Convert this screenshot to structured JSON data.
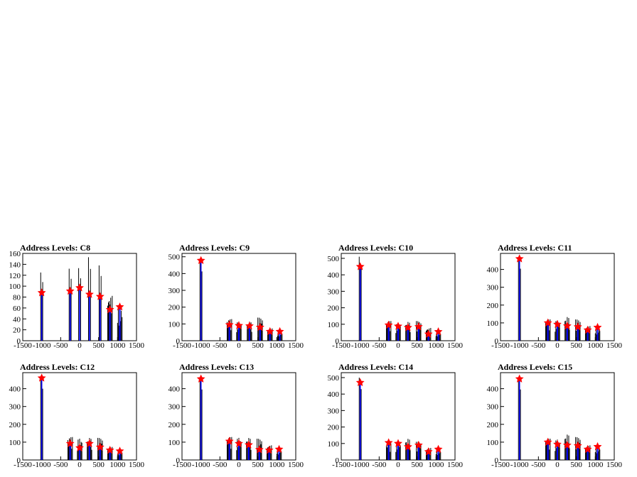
{
  "chart_data": [
    {
      "type": "histogram",
      "title": "Address Levels: C8",
      "xlim": [
        -1500,
        1500
      ],
      "ylim": [
        0,
        160
      ],
      "xticks": [
        -1500,
        -1000,
        -500,
        0,
        500,
        1000,
        1500
      ],
      "xtick_labels": [
        "-1500",
        "-1000",
        "-500",
        "0",
        "500",
        "1000",
        "1500"
      ],
      "yticks": [
        0,
        20,
        40,
        60,
        80,
        100,
        120,
        140,
        160
      ],
      "peaks": [
        {
          "x": -1000,
          "max": 125,
          "mean": 88
        },
        {
          "x": -250,
          "max": 132,
          "mean": 91
        },
        {
          "x": 0,
          "max": 133,
          "mean": 97
        },
        {
          "x": 260,
          "max": 153,
          "mean": 85
        },
        {
          "x": 540,
          "max": 138,
          "mean": 81
        },
        {
          "x": 800,
          "max": 90,
          "mean": 57
        },
        {
          "x": 1060,
          "max": 63,
          "mean": 62
        }
      ]
    },
    {
      "type": "histogram",
      "title": "Address Levels: C9",
      "xlim": [
        -1500,
        1500
      ],
      "ylim": [
        0,
        520
      ],
      "xticks": [
        -1500,
        -1000,
        -500,
        0,
        500,
        1000,
        1500
      ],
      "xtick_labels": [
        "-1500",
        "-1000",
        "-500",
        "0",
        "500",
        "1000",
        "1500"
      ],
      "yticks": [
        0,
        100,
        200,
        300,
        400,
        500
      ],
      "peaks": [
        {
          "x": -1000,
          "max": 480,
          "mean": 478
        },
        {
          "x": -250,
          "max": 140,
          "mean": 95
        },
        {
          "x": 0,
          "max": 120,
          "mean": 90
        },
        {
          "x": 280,
          "max": 120,
          "mean": 88
        },
        {
          "x": 560,
          "max": 150,
          "mean": 80
        },
        {
          "x": 820,
          "max": 80,
          "mean": 55
        },
        {
          "x": 1080,
          "max": 60,
          "mean": 55
        }
      ]
    },
    {
      "type": "histogram",
      "title": "Address Levels: C10",
      "xlim": [
        -1500,
        1500
      ],
      "ylim": [
        0,
        530
      ],
      "xticks": [
        -1500,
        -1000,
        -500,
        0,
        500,
        1000,
        1500
      ],
      "xtick_labels": [
        "-1500",
        "-1000",
        "-500",
        "0",
        "500",
        "1000",
        "1500"
      ],
      "yticks": [
        0,
        100,
        200,
        300,
        400,
        500
      ],
      "peaks": [
        {
          "x": -1000,
          "max": 510,
          "mean": 450
        },
        {
          "x": -250,
          "max": 130,
          "mean": 95
        },
        {
          "x": 0,
          "max": 110,
          "mean": 88
        },
        {
          "x": 260,
          "max": 120,
          "mean": 80
        },
        {
          "x": 540,
          "max": 130,
          "mean": 85
        },
        {
          "x": 800,
          "max": 85,
          "mean": 40
        },
        {
          "x": 1060,
          "max": 60,
          "mean": 55
        }
      ]
    },
    {
      "type": "histogram",
      "title": "Address Levels: C11",
      "xlim": [
        -1500,
        1500
      ],
      "ylim": [
        0,
        490
      ],
      "xticks": [
        -1500,
        -1000,
        -500,
        0,
        500,
        1000,
        1500
      ],
      "xtick_labels": [
        "-1500",
        "-1000",
        "-500",
        "0",
        "500",
        "1000",
        "1500"
      ],
      "yticks": [
        0,
        100,
        200,
        300,
        400
      ],
      "peaks": [
        {
          "x": -1000,
          "max": 470,
          "mean": 460
        },
        {
          "x": -250,
          "max": 130,
          "mean": 100
        },
        {
          "x": 0,
          "max": 120,
          "mean": 92
        },
        {
          "x": 260,
          "max": 140,
          "mean": 83
        },
        {
          "x": 540,
          "max": 130,
          "mean": 78
        },
        {
          "x": 800,
          "max": 90,
          "mean": 60
        },
        {
          "x": 1060,
          "max": 80,
          "mean": 75
        }
      ]
    },
    {
      "type": "histogram",
      "title": "Address Levels: C12",
      "xlim": [
        -1500,
        1500
      ],
      "ylim": [
        0,
        490
      ],
      "xticks": [
        -1500,
        -1000,
        -500,
        0,
        500,
        1000,
        1500
      ],
      "xtick_labels": [
        "-1500",
        "-1000",
        "-500",
        "0",
        "500",
        "1000",
        "1500"
      ],
      "yticks": [
        0,
        100,
        200,
        300,
        400
      ],
      "peaks": [
        {
          "x": -1000,
          "max": 465,
          "mean": 460
        },
        {
          "x": -250,
          "max": 140,
          "mean": 92
        },
        {
          "x": 0,
          "max": 125,
          "mean": 68
        },
        {
          "x": 260,
          "max": 130,
          "mean": 92
        },
        {
          "x": 540,
          "max": 135,
          "mean": 72
        },
        {
          "x": 800,
          "max": 80,
          "mean": 55
        },
        {
          "x": 1060,
          "max": 60,
          "mean": 50
        }
      ]
    },
    {
      "type": "histogram",
      "title": "Address Levels: C13",
      "xlim": [
        -1500,
        1500
      ],
      "ylim": [
        0,
        490
      ],
      "xticks": [
        -1500,
        -1000,
        -500,
        0,
        500,
        1000,
        1500
      ],
      "xtick_labels": [
        "-1500",
        "-1000",
        "-500",
        "0",
        "500",
        "1000",
        "1500"
      ],
      "yticks": [
        0,
        100,
        200,
        300,
        400
      ],
      "peaks": [
        {
          "x": -1000,
          "max": 460,
          "mean": 455
        },
        {
          "x": -250,
          "max": 140,
          "mean": 105
        },
        {
          "x": 0,
          "max": 130,
          "mean": 92
        },
        {
          "x": 260,
          "max": 130,
          "mean": 85
        },
        {
          "x": 540,
          "max": 130,
          "mean": 58
        },
        {
          "x": 800,
          "max": 90,
          "mean": 55
        },
        {
          "x": 1060,
          "max": 70,
          "mean": 60
        }
      ]
    },
    {
      "type": "histogram",
      "title": "Address Levels: C14",
      "xlim": [
        -1500,
        1500
      ],
      "ylim": [
        0,
        530
      ],
      "xticks": [
        -1500,
        -1000,
        -500,
        0,
        500,
        1000,
        1500
      ],
      "xtick_labels": [
        "-1500",
        "-1000",
        "-500",
        "0",
        "500",
        "1000",
        "1500"
      ],
      "yticks": [
        0,
        100,
        200,
        300,
        400,
        500
      ],
      "peaks": [
        {
          "x": -1000,
          "max": 500,
          "mean": 470
        },
        {
          "x": -250,
          "max": 110,
          "mean": 105
        },
        {
          "x": 0,
          "max": 115,
          "mean": 100
        },
        {
          "x": 260,
          "max": 135,
          "mean": 80
        },
        {
          "x": 540,
          "max": 120,
          "mean": 90
        },
        {
          "x": 800,
          "max": 80,
          "mean": 50
        },
        {
          "x": 1060,
          "max": 70,
          "mean": 65
        }
      ]
    },
    {
      "type": "histogram",
      "title": "Address Levels: C15",
      "xlim": [
        -1500,
        1500
      ],
      "ylim": [
        0,
        490
      ],
      "xticks": [
        -1500,
        -1000,
        -500,
        0,
        500,
        1000,
        1500
      ],
      "xtick_labels": [
        "-1500",
        "-1000",
        "-500",
        "0",
        "500",
        "1000",
        "1500"
      ],
      "yticks": [
        0,
        100,
        200,
        300,
        400
      ],
      "peaks": [
        {
          "x": -1000,
          "max": 460,
          "mean": 455
        },
        {
          "x": -250,
          "max": 130,
          "mean": 100
        },
        {
          "x": 0,
          "max": 120,
          "mean": 88
        },
        {
          "x": 260,
          "max": 150,
          "mean": 83
        },
        {
          "x": 540,
          "max": 140,
          "mean": 80
        },
        {
          "x": 800,
          "max": 90,
          "mean": 60
        },
        {
          "x": 1060,
          "max": 85,
          "mean": 75
        }
      ]
    }
  ],
  "colors": {
    "histogram_line": "#000000",
    "histogram_fill": "#0000ff",
    "marker": "#ff0000"
  }
}
